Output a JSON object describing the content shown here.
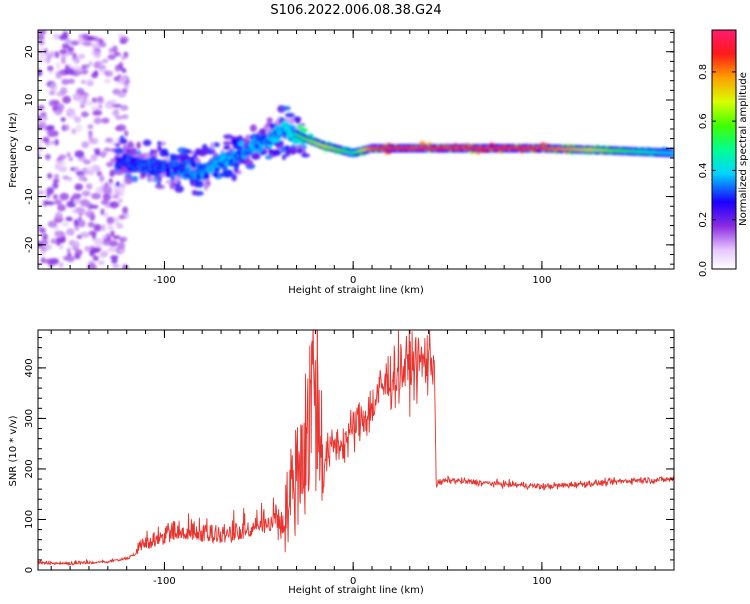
{
  "figure": {
    "title": "S106.2022.006.08.38.G24"
  },
  "colors": {
    "snr_line": "#e8322d",
    "axis": "#000000",
    "background": "#ffffff"
  },
  "chart_data": [
    {
      "type": "heatmap",
      "xlabel": "Height of straight line (km)",
      "ylabel": "Frequency (Hz)",
      "xlim": [
        -167,
        170
      ],
      "ylim": [
        -25,
        24.5
      ],
      "xticks": [
        -100,
        0,
        100
      ],
      "yticks": [
        -20,
        -10,
        0,
        10,
        20
      ],
      "grid": false,
      "colorbar": {
        "label": "Normalized spectral amplitude",
        "range": [
          0,
          0.97
        ],
        "ticks": [
          0.0,
          0.2,
          0.4,
          0.6,
          0.8
        ],
        "colormap": "rainbow (white-violet-blue-cyan-green-yellow-red-pink)"
      },
      "ridge": {
        "x": [
          -120,
          -100,
          -80,
          -60,
          -45,
          -35,
          -25,
          -15,
          -5,
          0,
          10,
          20,
          60,
          100,
          140,
          170
        ],
        "freq": [
          -3,
          -4,
          -5,
          -1,
          2,
          4,
          2,
          0.5,
          -0.5,
          -1,
          0,
          0,
          0,
          0,
          -0.5,
          -1
        ],
        "amplitude": [
          0.35,
          0.35,
          0.4,
          0.4,
          0.4,
          0.45,
          0.6,
          0.7,
          0.6,
          0.5,
          0.85,
          0.95,
          0.95,
          0.9,
          0.6,
          0.4
        ]
      }
    },
    {
      "type": "line",
      "xlabel": "Height of straight line (km)",
      "ylabel": "SNR (10 * v/v)",
      "xlim": [
        -167,
        170
      ],
      "ylim": [
        0,
        475
      ],
      "xticks": [
        -100,
        0,
        100
      ],
      "yticks": [
        0,
        100,
        200,
        300,
        400
      ],
      "grid": false,
      "series": [
        {
          "x": [
            -167,
            -150,
            -130,
            -120,
            -110,
            -100,
            -90,
            -80,
            -70,
            -60,
            -50,
            -40,
            -35,
            -30,
            -25,
            -20,
            -19,
            -15,
            -10,
            -5,
            0,
            5,
            10,
            15,
            20,
            25,
            30,
            35,
            40,
            43,
            44,
            50,
            60,
            70,
            80,
            90,
            100,
            110,
            120,
            130,
            140,
            150,
            160,
            170
          ],
          "y": [
            12,
            10,
            14,
            20,
            40,
            50,
            60,
            55,
            50,
            60,
            70,
            80,
            120,
            200,
            250,
            420,
            300,
            220,
            250,
            250,
            280,
            300,
            320,
            360,
            380,
            395,
            405,
            410,
            415,
            418,
            170,
            178,
            175,
            172,
            170,
            168,
            165,
            167,
            170,
            172,
            175,
            178,
            178,
            180
          ]
        }
      ],
      "annotations": {
        "peak_x": -19,
        "peak_y": 475
      }
    }
  ]
}
